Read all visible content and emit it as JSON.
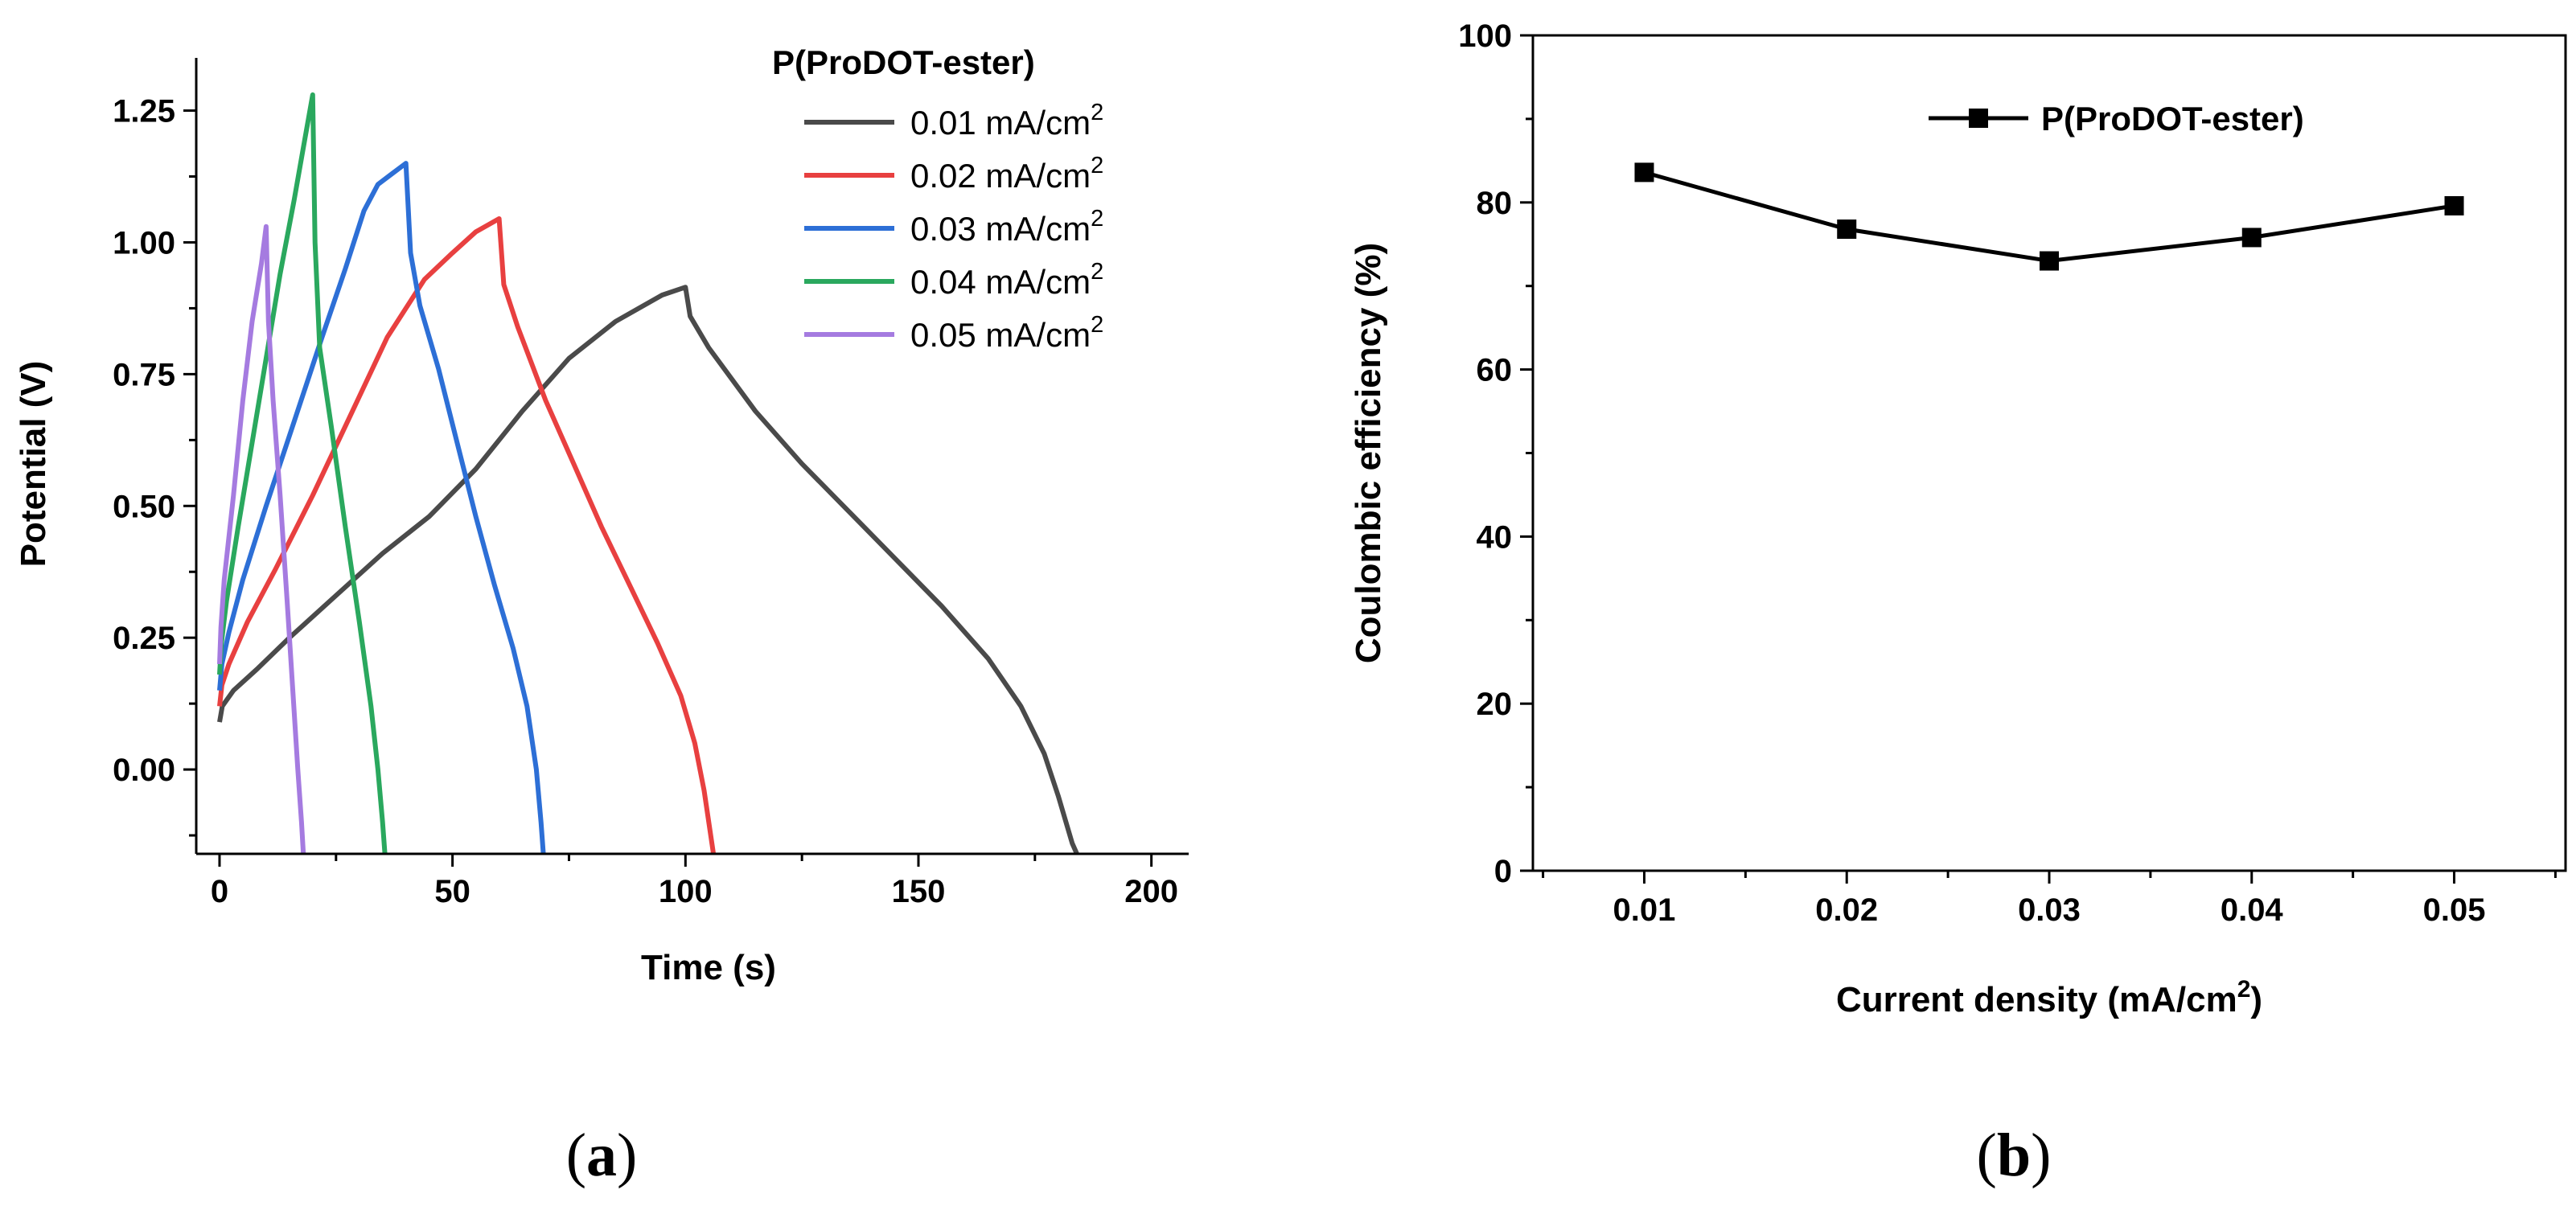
{
  "chart_data": [
    {
      "type": "line",
      "panel_label": "a",
      "xlabel": "Time (s)",
      "ylabel": "Potential (V)",
      "xlim": [
        -5,
        208
      ],
      "ylim": [
        -0.16,
        1.35
      ],
      "xticks": [
        0,
        50,
        100,
        150,
        200
      ],
      "yticks": [
        0.0,
        0.25,
        0.5,
        0.75,
        1.0,
        1.25
      ],
      "xtick_labels": [
        "0",
        "50",
        "100",
        "150",
        "200"
      ],
      "ytick_labels": [
        "0.00",
        "0.25",
        "0.50",
        "0.75",
        "1.00",
        "1.25"
      ],
      "legend_title": "P(ProDOT-ester)",
      "legend_unit": "mA/cm",
      "legend_sup": "2",
      "series": [
        {
          "name": "0.01",
          "color": "#4a4a4a",
          "points": [
            [
              0,
              0.09
            ],
            [
              0.6,
              0.12
            ],
            [
              3,
              0.15
            ],
            [
              8,
              0.19
            ],
            [
              15,
              0.25
            ],
            [
              25,
              0.33
            ],
            [
              35,
              0.41
            ],
            [
              45,
              0.48
            ],
            [
              55,
              0.57
            ],
            [
              65,
              0.68
            ],
            [
              75,
              0.78
            ],
            [
              85,
              0.85
            ],
            [
              95,
              0.9
            ],
            [
              100,
              0.915
            ],
            [
              101,
              0.86
            ],
            [
              105,
              0.8
            ],
            [
              115,
              0.68
            ],
            [
              125,
              0.58
            ],
            [
              135,
              0.49
            ],
            [
              145,
              0.4
            ],
            [
              155,
              0.31
            ],
            [
              165,
              0.21
            ],
            [
              172,
              0.12
            ],
            [
              177,
              0.03
            ],
            [
              180,
              -0.05
            ],
            [
              183,
              -0.14
            ],
            [
              184,
              -0.16
            ]
          ]
        },
        {
          "name": "0.02",
          "color": "#e84040",
          "points": [
            [
              0,
              0.12
            ],
            [
              0.5,
              0.16
            ],
            [
              2,
              0.2
            ],
            [
              6,
              0.28
            ],
            [
              12,
              0.38
            ],
            [
              20,
              0.52
            ],
            [
              28,
              0.67
            ],
            [
              36,
              0.82
            ],
            [
              44,
              0.93
            ],
            [
              50,
              0.98
            ],
            [
              55,
              1.02
            ],
            [
              60,
              1.045
            ],
            [
              61,
              0.92
            ],
            [
              64,
              0.84
            ],
            [
              70,
              0.7
            ],
            [
              76,
              0.58
            ],
            [
              82,
              0.46
            ],
            [
              88,
              0.35
            ],
            [
              94,
              0.24
            ],
            [
              99,
              0.14
            ],
            [
              102,
              0.05
            ],
            [
              104,
              -0.04
            ],
            [
              106,
              -0.16
            ]
          ]
        },
        {
          "name": "0.03",
          "color": "#2d6fd6",
          "points": [
            [
              0,
              0.15
            ],
            [
              0.5,
              0.2
            ],
            [
              2,
              0.26
            ],
            [
              5,
              0.36
            ],
            [
              10,
              0.5
            ],
            [
              16,
              0.66
            ],
            [
              22,
              0.82
            ],
            [
              27,
              0.95
            ],
            [
              31,
              1.06
            ],
            [
              34,
              1.11
            ],
            [
              37,
              1.13
            ],
            [
              40,
              1.15
            ],
            [
              41,
              0.98
            ],
            [
              43,
              0.88
            ],
            [
              47,
              0.76
            ],
            [
              51,
              0.62
            ],
            [
              55,
              0.48
            ],
            [
              59,
              0.35
            ],
            [
              63,
              0.23
            ],
            [
              66,
              0.12
            ],
            [
              68,
              0.0
            ],
            [
              69,
              -0.1
            ],
            [
              69.5,
              -0.16
            ]
          ]
        },
        {
          "name": "0.04",
          "color": "#2aa85e",
          "points": [
            [
              0,
              0.18
            ],
            [
              0.4,
              0.24
            ],
            [
              1.5,
              0.32
            ],
            [
              4,
              0.46
            ],
            [
              7,
              0.62
            ],
            [
              10,
              0.78
            ],
            [
              13,
              0.94
            ],
            [
              16,
              1.08
            ],
            [
              18,
              1.18
            ],
            [
              20,
              1.28
            ],
            [
              20.5,
              1.0
            ],
            [
              21.5,
              0.8
            ],
            [
              24,
              0.65
            ],
            [
              27,
              0.46
            ],
            [
              30,
              0.28
            ],
            [
              32.5,
              0.12
            ],
            [
              34,
              0.0
            ],
            [
              35,
              -0.1
            ],
            [
              35.5,
              -0.16
            ]
          ]
        },
        {
          "name": "0.05",
          "color": "#a57be0",
          "points": [
            [
              0,
              0.2
            ],
            [
              0.3,
              0.27
            ],
            [
              1,
              0.36
            ],
            [
              3,
              0.52
            ],
            [
              5,
              0.7
            ],
            [
              7,
              0.85
            ],
            [
              9,
              0.96
            ],
            [
              10,
              1.03
            ],
            [
              10.5,
              0.85
            ],
            [
              11.5,
              0.7
            ],
            [
              13,
              0.52
            ],
            [
              14.5,
              0.32
            ],
            [
              15.8,
              0.14
            ],
            [
              16.8,
              0.0
            ],
            [
              17.6,
              -0.1
            ],
            [
              18,
              -0.16
            ]
          ]
        }
      ]
    },
    {
      "type": "line",
      "panel_label": "b",
      "xlabel": "Current density (mA/cm",
      "xlabel_sup": "2",
      "xlabel_close": ")",
      "ylabel": "Coulombic efficiency (%)",
      "xlim": [
        0.0045,
        0.0555
      ],
      "ylim": [
        0,
        100
      ],
      "xticks": [
        0.01,
        0.02,
        0.03,
        0.04,
        0.05
      ],
      "yticks": [
        0,
        20,
        40,
        60,
        80,
        100
      ],
      "xtick_labels": [
        "0.01",
        "0.02",
        "0.03",
        "0.04",
        "0.05"
      ],
      "ytick_labels": [
        "0",
        "20",
        "40",
        "60",
        "80",
        "100"
      ],
      "legend": "P(ProDOT-ester)",
      "series": [
        {
          "name": "P(ProDOT-ester)",
          "color": "#000000",
          "marker": "square",
          "x": [
            0.01,
            0.02,
            0.03,
            0.04,
            0.05
          ],
          "y": [
            83.6,
            76.8,
            73.0,
            75.8,
            79.6
          ]
        }
      ]
    }
  ]
}
